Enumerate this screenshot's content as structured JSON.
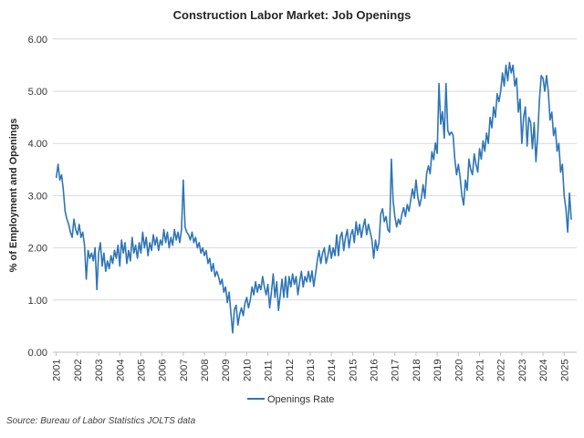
{
  "title": "Construction Labor Market: Job Openings",
  "y_axis": {
    "title": "% of Employment and Openings",
    "tick_labels": [
      "0.00",
      "1.00",
      "2.00",
      "3.00",
      "4.00",
      "5.00",
      "6.00"
    ],
    "min": 0,
    "max": 6
  },
  "x_axis": {
    "tick_labels": [
      "2001",
      "2002",
      "2003",
      "2004",
      "2005",
      "2006",
      "2007",
      "2008",
      "2009",
      "2010",
      "2011",
      "2012",
      "2013",
      "2014",
      "2015",
      "2016",
      "2017",
      "2018",
      "2019",
      "2020",
      "2021",
      "2022",
      "2023",
      "2024",
      "2025"
    ]
  },
  "legend": {
    "label": "Openings Rate"
  },
  "source": "Source: Bureau of Labor Statistics JOLTS data",
  "colors": {
    "line": "#2E75B6",
    "grid": "#D9D9D9",
    "axis": "#BFBFBF",
    "text": "#262626"
  },
  "chart_data": {
    "type": "line",
    "title": "Construction Labor Market: Job Openings",
    "xlabel": "",
    "ylabel": "% of Employment and Openings",
    "ylim": [
      0,
      6
    ],
    "grid": true,
    "legend_position": "bottom",
    "x_start": "2001-01",
    "frequency": "monthly",
    "x_tick_years": [
      2001,
      2002,
      2003,
      2004,
      2005,
      2006,
      2007,
      2008,
      2009,
      2010,
      2011,
      2012,
      2013,
      2014,
      2015,
      2016,
      2017,
      2018,
      2019,
      2020,
      2021,
      2022,
      2023,
      2024,
      2025
    ],
    "series": [
      {
        "name": "Openings Rate",
        "values": [
          3.35,
          3.6,
          3.3,
          3.4,
          3.1,
          2.7,
          2.55,
          2.45,
          2.3,
          2.2,
          2.55,
          2.35,
          2.25,
          2.45,
          2.2,
          2.3,
          2.05,
          1.4,
          1.95,
          1.8,
          1.9,
          1.75,
          2.0,
          1.2,
          1.9,
          2.1,
          1.65,
          1.9,
          1.55,
          1.75,
          1.6,
          1.85,
          1.7,
          1.95,
          1.8,
          2.05,
          1.65,
          2.15,
          1.9,
          2.1,
          1.7,
          1.95,
          1.75,
          2.2,
          1.9,
          2.05,
          1.8,
          2.1,
          1.9,
          2.3,
          2.0,
          2.2,
          1.85,
          2.1,
          1.95,
          2.25,
          2.05,
          2.2,
          1.95,
          2.15,
          2.05,
          2.35,
          2.1,
          2.3,
          2.0,
          2.2,
          2.05,
          2.35,
          2.15,
          2.3,
          2.1,
          2.35,
          3.3,
          2.4,
          2.3,
          2.25,
          2.15,
          2.3,
          2.1,
          2.2,
          2.0,
          2.1,
          1.9,
          2.0,
          1.85,
          1.95,
          1.7,
          1.8,
          1.55,
          1.7,
          1.45,
          1.55,
          1.45,
          1.3,
          1.4,
          1.15,
          1.25,
          0.95,
          1.15,
          0.75,
          0.37,
          0.82,
          0.9,
          0.52,
          0.73,
          0.85,
          0.7,
          0.94,
          1.05,
          0.85,
          1.0,
          1.25,
          1.1,
          1.35,
          1.15,
          1.3,
          1.2,
          1.45,
          1.25,
          1.1,
          1.3,
          0.85,
          1.15,
          1.5,
          1.05,
          1.35,
          0.8,
          1.1,
          1.4,
          1.05,
          1.45,
          1.05,
          1.45,
          1.25,
          1.5,
          1.3,
          1.45,
          1.1,
          1.35,
          1.55,
          1.25,
          1.45,
          1.35,
          1.55,
          1.35,
          1.56,
          1.26,
          1.5,
          1.75,
          1.95,
          1.7,
          1.9,
          2.0,
          1.7,
          1.85,
          2.05,
          1.8,
          2.0,
          1.85,
          2.25,
          1.85,
          2.2,
          2.3,
          1.95,
          2.2,
          2.35,
          2.0,
          2.25,
          2.35,
          2.1,
          2.5,
          2.25,
          2.45,
          2.2,
          2.4,
          2.55,
          2.25,
          2.45,
          2.3,
          2.15,
          1.8,
          2.15,
          1.95,
          2.1,
          2.65,
          2.75,
          2.5,
          2.6,
          2.35,
          2.3,
          3.7,
          2.9,
          2.6,
          2.4,
          2.55,
          2.45,
          2.65,
          2.77,
          2.6,
          2.83,
          2.7,
          2.92,
          3.13,
          2.95,
          3.3,
          2.98,
          2.8,
          2.95,
          3.21,
          2.95,
          3.42,
          3.57,
          3.42,
          3.84,
          3.69,
          4.01,
          3.81,
          5.15,
          4.37,
          4.61,
          4.1,
          5.15,
          4.25,
          4.16,
          4.22,
          4.16,
          3.7,
          3.4,
          3.6,
          3.35,
          3.0,
          2.82,
          3.3,
          3.1,
          3.7,
          3.5,
          3.4,
          3.8,
          3.6,
          3.45,
          3.9,
          3.7,
          4.05,
          3.85,
          4.2,
          4.0,
          4.5,
          4.3,
          4.7,
          4.5,
          4.95,
          4.8,
          5.0,
          5.35,
          5.1,
          5.5,
          5.2,
          5.55,
          5.35,
          5.5,
          5.1,
          5.25,
          4.6,
          4.85,
          4.0,
          4.5,
          4.7,
          3.95,
          4.5,
          4.4,
          3.9,
          4.4,
          3.65,
          4.15,
          4.85,
          5.3,
          5.25,
          5.0,
          5.3,
          5.0,
          4.45,
          4.6,
          4.15,
          4.3,
          3.85,
          4.0,
          3.45,
          3.6,
          3.0,
          2.75,
          2.3,
          3.05,
          2.55
        ]
      }
    ]
  }
}
